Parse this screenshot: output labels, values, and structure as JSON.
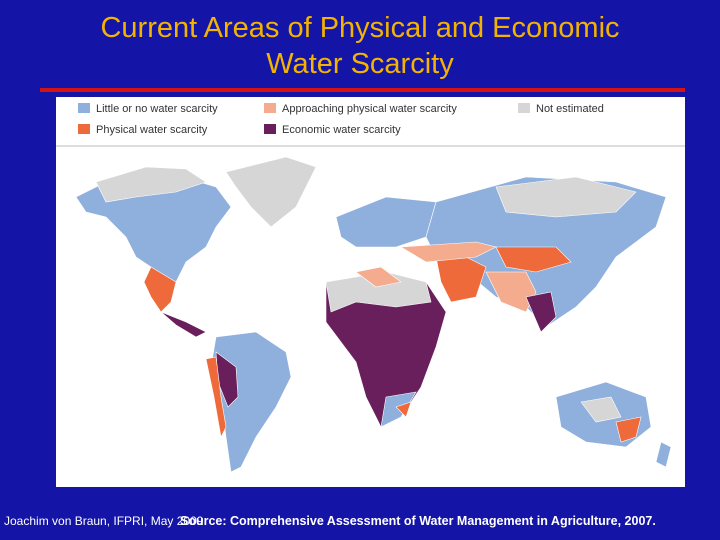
{
  "header": {
    "title": [
      "Current Areas of Physical and Economic",
      "Water Scarcity"
    ]
  },
  "legend": {
    "items": [
      "Little or no water scarcity",
      "Approaching physical water scarcity",
      "Not estimated",
      "Physical water scarcity",
      "Economic water scarcity"
    ]
  },
  "footer": {
    "credit": "Joachim von Braun, IFPRI, May 2009",
    "source": "Source: Comprehensive Assessment of Water Management in Agriculture, 2007."
  }
}
